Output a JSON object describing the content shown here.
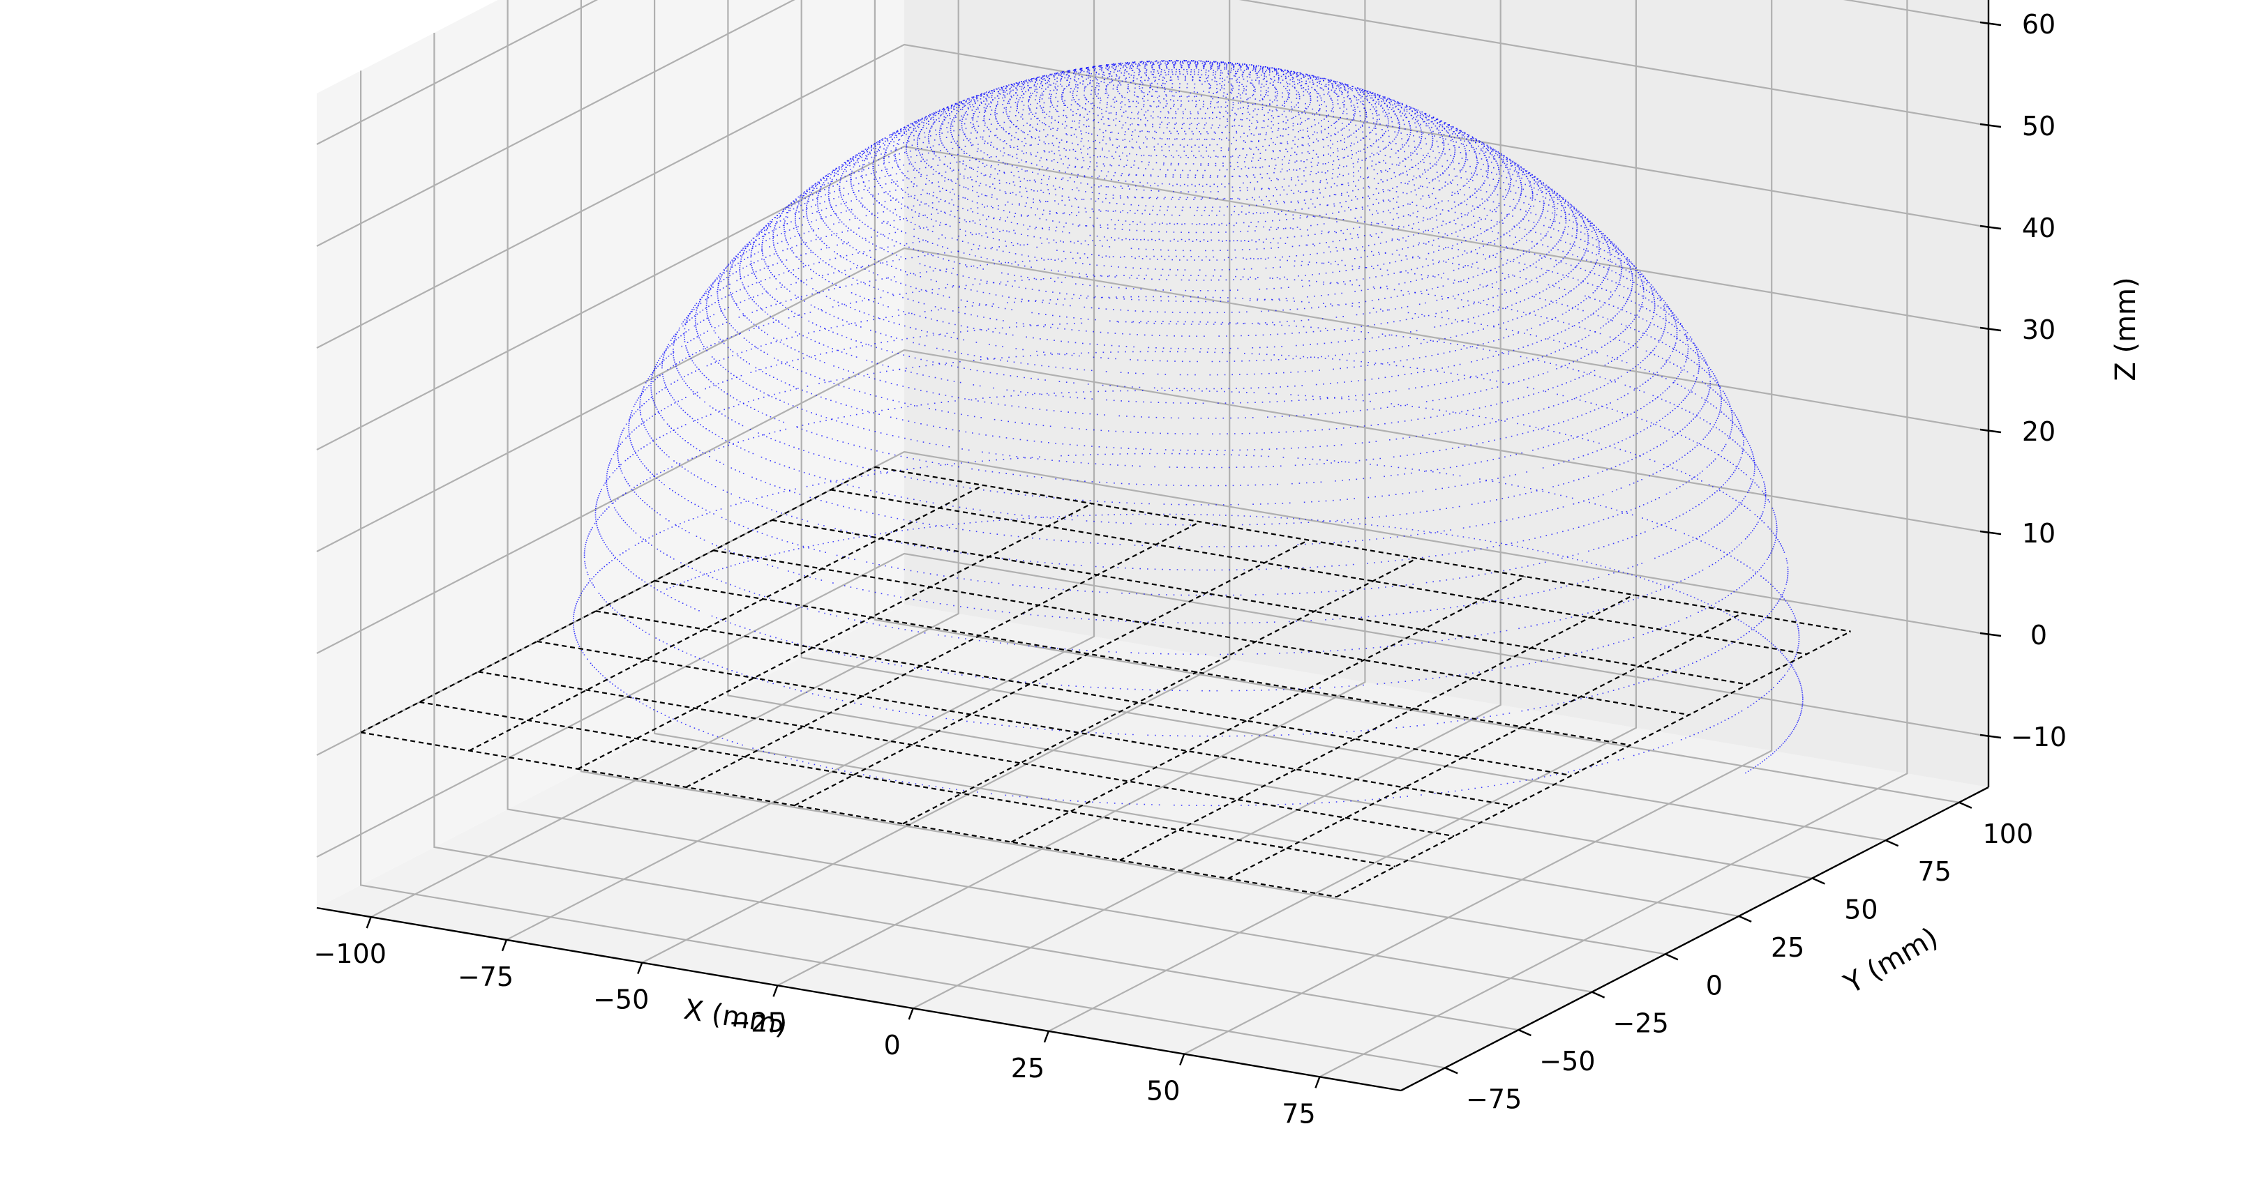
{
  "chart_data": {
    "type": "scatter",
    "projection": "3d",
    "title": "",
    "xlabel": "X (mm)",
    "ylabel": "Y (mm)",
    "zlabel": "Z (mm)",
    "xlim": [
      -110,
      90
    ],
    "ylim": [
      -90,
      110
    ],
    "zlim": [
      -15,
      65
    ],
    "xticks": [
      -100,
      -75,
      -50,
      -25,
      0,
      25,
      50,
      75
    ],
    "yticks": [
      -75,
      -50,
      -25,
      0,
      25,
      50,
      75,
      100
    ],
    "zticks": [
      -10,
      0,
      10,
      20,
      30,
      40,
      50,
      60
    ],
    "xtick_labels": [
      "−100",
      "−75",
      "−50",
      "−25",
      "0",
      "25",
      "50",
      "75"
    ],
    "ytick_labels": [
      "−75",
      "−50",
      "−25",
      "0",
      "25",
      "50",
      "75",
      "100"
    ],
    "ztick_labels": [
      "−10",
      "0",
      "10",
      "20",
      "30",
      "40",
      "50",
      "60"
    ],
    "grid": true,
    "series": [
      {
        "kind": "point-cloud",
        "shape": "hemispherical dome",
        "center": [
          -5,
          12,
          0
        ],
        "radius": 100,
        "apex_z": 60,
        "base_z": 0,
        "color": "#0000ff"
      },
      {
        "kind": "wire-grid",
        "line_style": "dashed",
        "color": "#000000",
        "z": 0,
        "x_lines": [
          -110,
          -90,
          -70,
          -50,
          -30,
          -10,
          10,
          30,
          50,
          70
        ],
        "y_lines": [
          -75,
          -55,
          -35,
          -15,
          5,
          25,
          45,
          65,
          85,
          100
        ],
        "x_extent": [
          -110,
          70
        ],
        "y_extent": [
          -75,
          100
        ]
      }
    ]
  }
}
